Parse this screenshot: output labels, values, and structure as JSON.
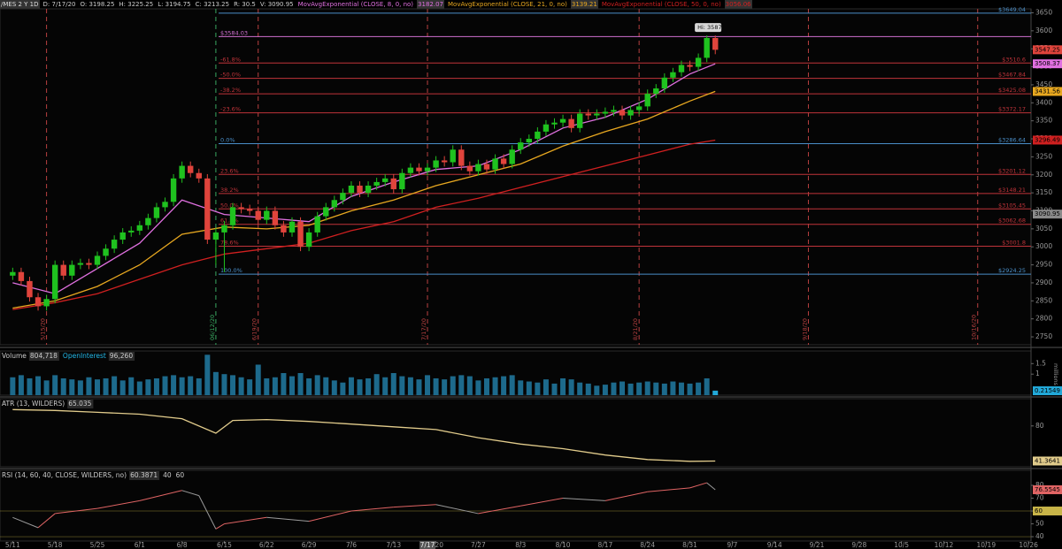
{
  "chart_data": [
    {
      "type": "candlestick",
      "title": "/MES 2 Y 1D",
      "ohlc_header": [
        "D: 7/17/20",
        "O: 3198.25",
        "H: 3225.25",
        "L: 3194.75",
        "C: 3213.25",
        "R: 30.5",
        "V: 3090.95"
      ],
      "open": [
        2920,
        2930,
        2905,
        2860,
        2835,
        2855,
        2950,
        2920,
        2950,
        2955,
        2950,
        2975,
        2995,
        3020,
        3040,
        3045,
        3060,
        3080,
        3110,
        3125,
        3190,
        3225,
        3205,
        3190,
        3020,
        3040,
        3060,
        3110,
        3105,
        3100,
        3075,
        3100,
        3060,
        3040,
        3070,
        3000,
        3040,
        3085,
        3110,
        3130,
        3150,
        3170,
        3150,
        3170,
        3180,
        3190,
        3160,
        3205,
        3220,
        3210,
        3220,
        3240,
        3235,
        3270,
        3225,
        3210,
        3230,
        3215,
        3245,
        3230,
        3270,
        3290,
        3300,
        3320,
        3340,
        3345,
        3355,
        3330,
        3370,
        3365,
        3370,
        3375,
        3380,
        3365,
        3380,
        3390,
        3425,
        3440,
        3470,
        3485,
        3505,
        3500,
        3525,
        3580
      ],
      "high": [
        2942,
        2942,
        2917,
        2872,
        2867,
        2962,
        2962,
        2962,
        2967,
        2967,
        2987,
        3007,
        3032,
        3052,
        3057,
        3072,
        3092,
        3122,
        3137,
        3202,
        3237,
        3237,
        3217,
        3202,
        3052,
        3072,
        3122,
        3122,
        3117,
        3112,
        3112,
        3112,
        3072,
        3082,
        3082,
        3052,
        3097,
        3122,
        3142,
        3162,
        3182,
        3182,
        3182,
        3192,
        3202,
        3202,
        3217,
        3232,
        3232,
        3232,
        3252,
        3252,
        3282,
        3282,
        3237,
        3242,
        3242,
        3257,
        3257,
        3282,
        3302,
        3312,
        3332,
        3352,
        3357,
        3367,
        3367,
        3382,
        3382,
        3382,
        3387,
        3392,
        3392,
        3392,
        3402,
        3437,
        3452,
        3482,
        3497,
        3517,
        3517,
        3537,
        3587,
        3587
      ],
      "low": [
        2908,
        2893,
        2848,
        2823,
        2823,
        2843,
        2908,
        2908,
        2938,
        2938,
        2938,
        2963,
        2983,
        3008,
        3028,
        3033,
        3048,
        3068,
        3098,
        3113,
        3178,
        3193,
        3178,
        3008,
        2950,
        2930,
        3048,
        3093,
        3088,
        3063,
        3063,
        3048,
        3028,
        3028,
        2988,
        2988,
        3028,
        3073,
        3098,
        3118,
        3138,
        3138,
        3138,
        3158,
        3168,
        3148,
        3148,
        3193,
        3198,
        3198,
        3208,
        3223,
        3223,
        3213,
        3198,
        3198,
        3203,
        3203,
        3218,
        3218,
        3258,
        3278,
        3288,
        3308,
        3328,
        3333,
        3318,
        3318,
        3353,
        3353,
        3358,
        3363,
        3353,
        3353,
        3368,
        3378,
        3413,
        3428,
        3458,
        3473,
        3488,
        3488,
        3513,
        3535
      ],
      "close": [
        2930,
        2905,
        2860,
        2835,
        2855,
        2950,
        2920,
        2950,
        2955,
        2950,
        2975,
        2995,
        3020,
        3040,
        3045,
        3060,
        3080,
        3110,
        3125,
        3190,
        3225,
        3205,
        3190,
        3020,
        3040,
        3060,
        3110,
        3105,
        3100,
        3075,
        3100,
        3060,
        3040,
        3070,
        3000,
        3040,
        3085,
        3110,
        3130,
        3150,
        3170,
        3150,
        3170,
        3180,
        3190,
        3160,
        3205,
        3220,
        3210,
        3220,
        3240,
        3235,
        3270,
        3225,
        3210,
        3230,
        3215,
        3245,
        3230,
        3270,
        3290,
        3300,
        3320,
        3340,
        3345,
        3355,
        3330,
        3370,
        3365,
        3370,
        3375,
        3380,
        3365,
        3380,
        3390,
        3425,
        3440,
        3470,
        3485,
        3505,
        3500,
        3525,
        3580,
        3547.25
      ],
      "up_color": "#1fc21f",
      "down_color": "#e0443c",
      "series": [
        {
          "name": "MovAvgExponential (CLOSE, 8, 0, no)",
          "legend_value": 3182.07,
          "color": "#e070e0",
          "x": [
            0,
            5,
            10,
            15,
            20,
            25,
            30,
            35,
            40,
            45,
            50,
            55,
            60,
            65,
            70,
            75,
            80,
            83
          ],
          "values": [
            2900,
            2870,
            2940,
            3010,
            3130,
            3090,
            3080,
            3070,
            3140,
            3180,
            3215,
            3225,
            3270,
            3330,
            3360,
            3410,
            3480,
            3508.37
          ]
        },
        {
          "name": "MovAvgExponential (CLOSE, 21, 0, no)",
          "legend_value": 3139.21,
          "color": "#e8a820",
          "x": [
            0,
            5,
            10,
            15,
            20,
            25,
            30,
            35,
            40,
            45,
            50,
            55,
            60,
            65,
            70,
            75,
            80,
            83
          ],
          "values": [
            2830,
            2850,
            2890,
            2950,
            3035,
            3055,
            3050,
            3060,
            3100,
            3130,
            3170,
            3200,
            3230,
            3280,
            3320,
            3355,
            3405,
            3431.56
          ]
        },
        {
          "name": "MovAvgExponential (CLOSE, 50, 0, no)",
          "legend_value": 3056.06,
          "color": "#d02020",
          "x": [
            0,
            5,
            10,
            15,
            20,
            25,
            30,
            35,
            40,
            45,
            50,
            55,
            60,
            65,
            70,
            75,
            80,
            83
          ],
          "values": [
            2826,
            2845,
            2870,
            2910,
            2950,
            2980,
            2995,
            3010,
            3045,
            3070,
            3110,
            3135,
            3165,
            3195,
            3225,
            3255,
            3285,
            3296.49
          ]
        }
      ],
      "ylim": [
        2728,
        3661
      ],
      "yticks": [
        2750,
        2800,
        2850,
        2900,
        2950,
        3000,
        3050,
        3100,
        3150,
        3200,
        3250,
        3300,
        3350,
        3400,
        3450,
        3500,
        3550,
        3600,
        3650
      ],
      "marker_badge": 3090.95,
      "marker_color": "#8a8a8a",
      "fib": {
        "names": [
          "-61.8%",
          "-50.0%",
          "-38.2%",
          "-23.6%",
          "0.0%",
          "23.6%",
          "38.2%",
          "50.0%",
          "61.8%",
          "78.6%",
          "100.0%"
        ],
        "values": [
          3510.6,
          3467.84,
          3425.08,
          3372.17,
          3286.64,
          3201.12,
          3148.21,
          3105.45,
          3062.68,
          3001.8,
          2924.25
        ],
        "value_labels": [
          "$3510.6",
          "$3467.84",
          "$3425.08",
          "$3372.17",
          "$3286.64",
          "$3201.12",
          "$3148.21",
          "$3105.45",
          "$3062.68",
          "$3001.8",
          "$2924.25"
        ],
        "colors": [
          "#c0343a",
          "#c0343a",
          "#c0343a",
          "#c0343a",
          "#4a8ec8",
          "#c0343a",
          "#c0343a",
          "#c0343a",
          "#c0343a",
          "#c0343a",
          "#4a8ec8"
        ]
      },
      "price_lines": {
        "values": [
          3649.04,
          3584.03
        ],
        "value_labels": [
          "$3649.04",
          "$3584.03"
        ],
        "colors": [
          "#4a8ec8",
          "#d070d0"
        ],
        "label_sides": [
          "right",
          "left"
        ]
      },
      "expirations": {
        "x": [
          4,
          24,
          29,
          49,
          74,
          94,
          114
        ],
        "labels": [
          "5/15/20",
          "06/12/20",
          "6/19/20",
          "7/17/20",
          "8/21/20",
          "9/18/20",
          "10/16/20"
        ],
        "colors": [
          "#b84040",
          "#3aa860",
          "#b84040",
          "#b84040",
          "#b84040",
          "#b84040",
          "#b84040"
        ]
      },
      "annotation": {
        "label": "Hi: 3587",
        "x": 81,
        "value": 3587
      }
    },
    {
      "type": "bar",
      "legend": [
        {
          "text": "Volume",
          "value": "804,718"
        },
        {
          "text": "OpenInterest",
          "value": "96,260"
        }
      ],
      "values": [
        0.85,
        0.95,
        0.8,
        0.9,
        0.7,
        0.95,
        0.8,
        0.75,
        0.7,
        0.85,
        0.75,
        0.8,
        0.9,
        0.7,
        0.85,
        0.65,
        0.75,
        0.8,
        0.9,
        0.95,
        0.85,
        0.9,
        0.8,
        1.92,
        1.1,
        1.0,
        0.95,
        0.85,
        0.75,
        1.45,
        0.8,
        0.85,
        1.05,
        0.9,
        1.05,
        0.8,
        0.95,
        0.85,
        0.7,
        0.6,
        0.85,
        0.75,
        0.8,
        1.0,
        0.85,
        1.05,
        0.9,
        0.85,
        0.75,
        0.95,
        0.8,
        0.75,
        0.9,
        0.95,
        0.9,
        0.7,
        0.8,
        0.85,
        0.9,
        0.95,
        0.7,
        0.65,
        0.6,
        0.75,
        0.55,
        0.8,
        0.75,
        0.6,
        0.55,
        0.45,
        0.5,
        0.6,
        0.65,
        0.55,
        0.6,
        0.65,
        0.6,
        0.55,
        0.65,
        0.6,
        0.55,
        0.6,
        0.8,
        0.21549
      ],
      "color": "#1d6a8c",
      "badge_color": "#22a8d8",
      "ylim": [
        0,
        2.1
      ],
      "yticks": [
        1,
        1.5
      ],
      "axis_label": "millions"
    },
    {
      "type": "line",
      "legend": [
        {
          "text": "ATR (13, WILDERS)",
          "value": "65.035"
        }
      ],
      "x": [
        0,
        5,
        10,
        15,
        20,
        24,
        26,
        30,
        35,
        40,
        45,
        50,
        55,
        60,
        65,
        70,
        75,
        80,
        83
      ],
      "values": [
        98,
        97,
        95,
        93,
        88,
        72,
        86,
        87,
        85,
        82,
        79,
        76,
        67,
        60,
        55,
        48,
        43,
        41,
        41.3641
      ],
      "color": "#e2cc8c",
      "ylim": [
        35,
        110
      ],
      "yticks": [
        80
      ]
    },
    {
      "type": "line",
      "legend": [
        {
          "text": "RSI (14, 60, 40, CLOSE, WILDERS, no)",
          "value": "60.3871"
        }
      ],
      "x": [
        0,
        3,
        5,
        10,
        15,
        20,
        22,
        24,
        25,
        30,
        35,
        40,
        45,
        50,
        55,
        60,
        65,
        70,
        75,
        80,
        82,
        83
      ],
      "values": [
        55,
        47,
        58,
        62,
        68,
        76,
        72,
        46,
        50,
        55,
        52,
        60,
        63,
        65,
        58,
        64,
        70,
        68,
        75,
        78,
        82,
        76.5545
      ],
      "up_color": "#e06464",
      "down_color": "#9a9a9a",
      "levels": [
        40,
        60
      ],
      "level_color": "#c8b448",
      "ylim": [
        36.6,
        91.7
      ],
      "yticks": [
        40,
        50,
        60,
        70,
        80
      ],
      "xlim": [
        -1.5,
        120.3
      ],
      "xticks": [
        {
          "value": 0,
          "label": "5/11"
        },
        {
          "value": 5,
          "label": "5/18"
        },
        {
          "value": 10,
          "label": "5/25"
        },
        {
          "value": 15,
          "label": "6/1"
        },
        {
          "value": 20,
          "label": "6/8"
        },
        {
          "value": 25,
          "label": "6/15"
        },
        {
          "value": 30,
          "label": "6/22"
        },
        {
          "value": 35,
          "label": "6/29"
        },
        {
          "value": 40,
          "label": "7/6"
        },
        {
          "value": 45,
          "label": "7/13"
        },
        {
          "value": 50,
          "label": "7/20"
        },
        {
          "value": 55,
          "label": "7/27"
        },
        {
          "value": 60,
          "label": "8/3"
        },
        {
          "value": 65,
          "label": "8/10"
        },
        {
          "value": 70,
          "label": "8/17"
        },
        {
          "value": 75,
          "label": "8/24"
        },
        {
          "value": 80,
          "label": "8/31"
        },
        {
          "value": 85,
          "label": "9/7"
        },
        {
          "value": 90,
          "label": "9/14"
        },
        {
          "value": 95,
          "label": "9/21"
        },
        {
          "value": 100,
          "label": "9/28"
        },
        {
          "value": 105,
          "label": "10/5"
        },
        {
          "value": 110,
          "label": "10/12"
        },
        {
          "value": 115,
          "label": "10/19"
        },
        {
          "value": 120,
          "label": "10/26"
        }
      ],
      "cursor": {
        "value": 49,
        "label": "7/17"
      }
    }
  ]
}
